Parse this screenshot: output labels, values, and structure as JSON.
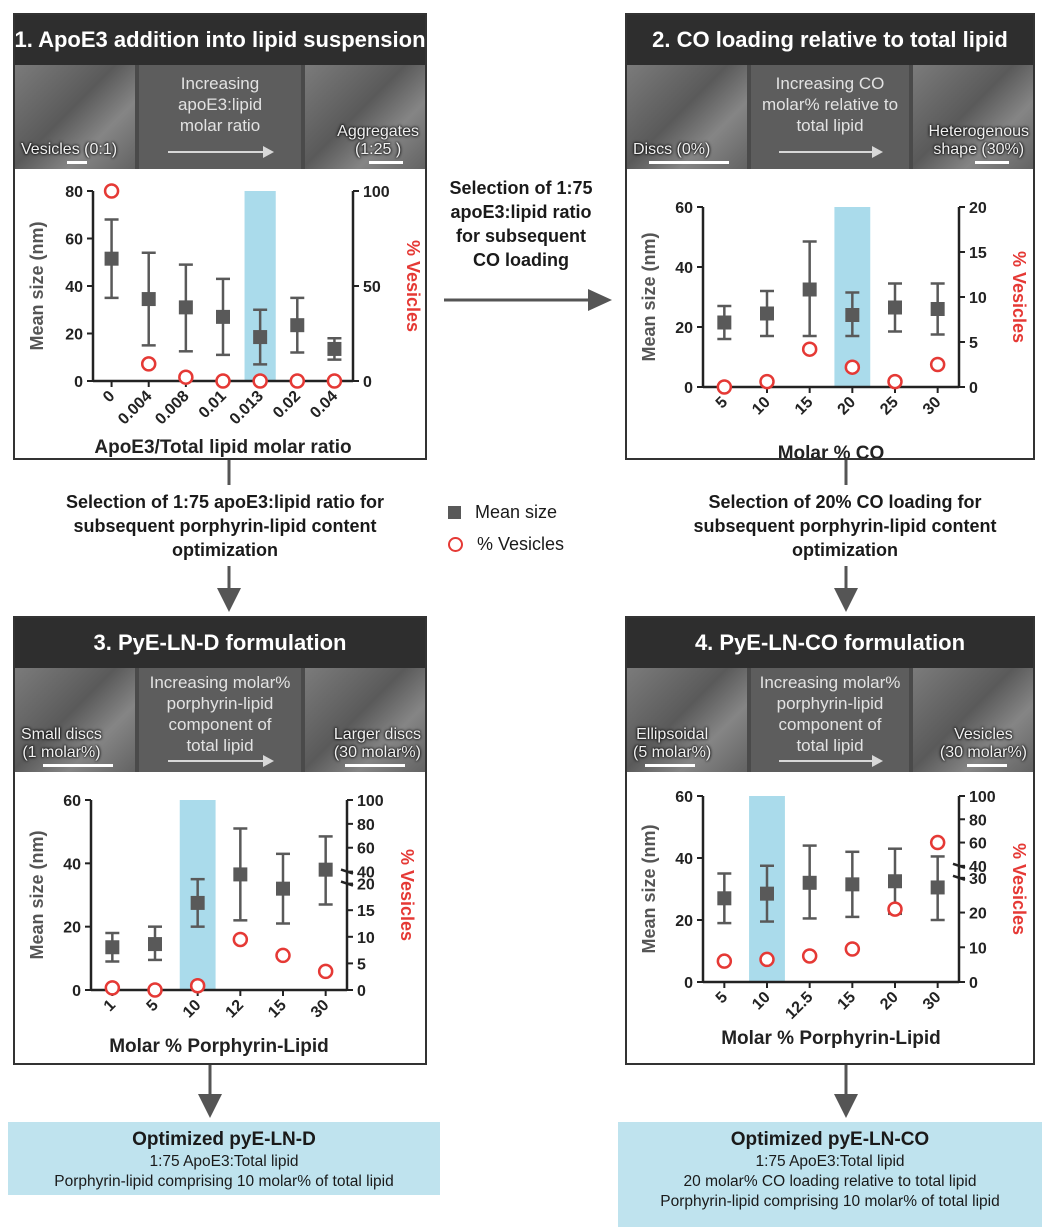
{
  "panels": [
    {
      "id": "p1",
      "title": "1. ApoE3 addition into lipid suspension",
      "strip": {
        "mid": "Increasing\napoE3:lipid\nmolar ratio",
        "left": "Vesicles (0:1)",
        "right": "Aggregates\n(1:25 )"
      }
    },
    {
      "id": "p2",
      "title": "2. CO loading relative to total lipid",
      "strip": {
        "mid": "Increasing  CO\nmolar% relative to\ntotal lipid",
        "left": "Discs (0%)",
        "right": "Heterogenous\nshape  (30%)"
      }
    },
    {
      "id": "p3",
      "title": "3. PyE-LN-D formulation",
      "strip": {
        "mid": "Increasing molar%\nporphyrin-lipid\ncomponent of\ntotal lipid",
        "left": "Small discs\n(1 molar%)",
        "right": "Larger discs\n(30 molar%)"
      }
    },
    {
      "id": "p4",
      "title": "4. PyE-LN-CO formulation",
      "strip": {
        "mid": "Increasing molar%\nporphyrin-lipid\ncomponent of\ntotal lipid",
        "left": "Ellipsoidal\n(5 molar%)",
        "right": "Vesicles\n(30 molar%)"
      }
    }
  ],
  "chart_data": [
    {
      "type": "scatter",
      "categories": [
        "0",
        "0.004",
        "0.008",
        "0.01",
        "0.013",
        "0.02",
        "0.04"
      ],
      "highlight_index": 4,
      "xlabel": "ApoE3/Total lipid molar ratio",
      "ylabel": "Mean size (nm)",
      "y2label": "% Vesicles",
      "ylim": [
        0,
        80
      ],
      "yticks": [
        0,
        20,
        40,
        60,
        80
      ],
      "y2lim": [
        0,
        100
      ],
      "y2ticks": [
        0,
        50,
        100
      ],
      "y2_broken": false,
      "series": [
        {
          "name": "Mean size",
          "axis": "left",
          "values": [
            51.5,
            34.5,
            31,
            27,
            18.5,
            23.5,
            13.5
          ],
          "err_low": [
            35,
            15,
            12.5,
            11,
            7,
            12,
            9
          ],
          "err_high": [
            68,
            54,
            49,
            43,
            30,
            35,
            18
          ]
        },
        {
          "name": "% Vesicles",
          "axis": "right",
          "values": [
            100,
            9,
            2,
            0,
            0,
            0,
            0
          ]
        }
      ]
    },
    {
      "type": "scatter",
      "categories": [
        "5",
        "10",
        "15",
        "20",
        "25",
        "30"
      ],
      "highlight_index": 3,
      "xlabel": "Molar % CO",
      "ylabel": "Mean size (nm)",
      "y2label": "% Vesicles",
      "ylim": [
        0,
        60
      ],
      "yticks": [
        0,
        20,
        40,
        60
      ],
      "y2lim": [
        0,
        20
      ],
      "y2ticks": [
        0,
        5,
        10,
        15,
        20
      ],
      "y2_broken": false,
      "series": [
        {
          "name": "Mean size",
          "axis": "left",
          "values": [
            21.5,
            24.5,
            32.5,
            24,
            26.5,
            26
          ],
          "err_low": [
            16,
            17,
            17,
            17,
            18.5,
            17.5
          ],
          "err_high": [
            27,
            32,
            48.5,
            31.5,
            34.5,
            34.5
          ]
        },
        {
          "name": "% Vesicles",
          "axis": "right",
          "values": [
            0,
            0.6,
            4.2,
            2.2,
            0.6,
            2.5
          ]
        }
      ]
    },
    {
      "type": "scatter",
      "categories": [
        "1",
        "5",
        "10",
        "12",
        "15",
        "30"
      ],
      "highlight_index": 2,
      "xlabel": "Molar % Porphyrin-Lipid",
      "ylabel": "Mean size (nm)",
      "y2label": "% Vesicles",
      "ylim": [
        0,
        60
      ],
      "yticks": [
        0,
        20,
        40,
        60
      ],
      "y2ticks_lower": [
        0,
        5,
        10,
        15,
        20
      ],
      "y2ticks_upper": [
        40,
        60,
        80,
        100
      ],
      "y2_broken": true,
      "series": [
        {
          "name": "Mean size",
          "axis": "left",
          "values": [
            13.5,
            14.5,
            27.5,
            36.5,
            32,
            38
          ],
          "err_low": [
            9,
            9.5,
            20,
            22,
            21,
            27
          ],
          "err_high": [
            18,
            20,
            35,
            51,
            43,
            48.5
          ]
        },
        {
          "name": "% Vesicles",
          "axis": "right",
          "values": [
            0.4,
            0,
            0.8,
            9.5,
            6.5,
            3.5
          ]
        }
      ]
    },
    {
      "type": "scatter",
      "categories": [
        "5",
        "10",
        "12.5",
        "15",
        "20",
        "30"
      ],
      "highlight_index": 1,
      "xlabel": "Molar % Porphyrin-Lipid",
      "ylabel": "Mean size (nm)",
      "y2label": "% Vesicles",
      "ylim": [
        0,
        60
      ],
      "yticks": [
        0,
        20,
        40,
        60
      ],
      "y2ticks_lower": [
        0,
        10,
        20,
        30
      ],
      "y2ticks_upper": [
        40,
        60,
        80,
        100
      ],
      "y2_broken": true,
      "series": [
        {
          "name": "Mean size",
          "axis": "left",
          "values": [
            27,
            28.5,
            32,
            31.5,
            32.5,
            30.5
          ],
          "err_low": [
            19,
            19.5,
            20.5,
            21,
            22,
            20
          ],
          "err_high": [
            35,
            37.5,
            44,
            42,
            43,
            40.5
          ]
        },
        {
          "name": "% Vesicles",
          "axis": "right",
          "values": [
            6,
            6.5,
            7.5,
            9.5,
            21,
            60
          ]
        }
      ]
    }
  ],
  "captions": {
    "middle": "Selection of 1:75\napoE3:lipid ratio\nfor subsequent\nCO loading",
    "left": "Selection of 1:75 apoE3:lipid ratio for\nsubsequent porphyrin-lipid content\noptimization",
    "right": "Selection of 20% CO loading for\nsubsequent porphyrin-lipid content\noptimization"
  },
  "legend": {
    "mean_size": "Mean size",
    "vesicles": "% Vesicles"
  },
  "results": {
    "left": {
      "title": "Optimized pyE-LN-D",
      "lines": [
        "1:75 ApoE3:Total lipid",
        "Porphyrin-lipid comprising 10 molar% of total lipid"
      ]
    },
    "right": {
      "title": "Optimized pyE-LN-CO",
      "lines": [
        "1:75 ApoE3:Total lipid",
        "20 molar% CO loading relative to total lipid",
        "Porphyrin-lipid comprising 10 molar% of total lipid"
      ]
    }
  },
  "colors": {
    "header": "#2e2e2e",
    "highlight": "#aadbeb",
    "marker": "#595959",
    "vesicle": "#e53935",
    "result_bg": "#bfe3ee"
  }
}
